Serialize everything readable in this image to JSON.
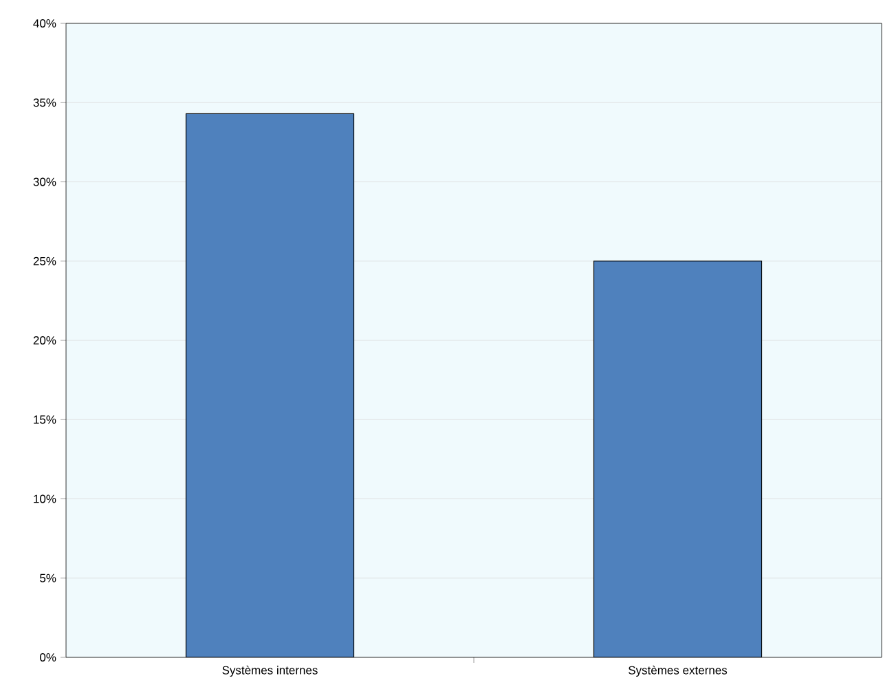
{
  "chart_data": {
    "type": "bar",
    "categories": [
      "Systèmes internes",
      "Systèmes externes"
    ],
    "values": [
      34.3,
      25.0
    ],
    "color": "#4f81bd",
    "ylim": [
      0,
      40
    ],
    "yticks": [
      {
        "value": 0,
        "label": "0%"
      },
      {
        "value": 5,
        "label": "5%"
      },
      {
        "value": 10,
        "label": "10%"
      },
      {
        "value": 15,
        "label": "15%"
      },
      {
        "value": 20,
        "label": "20%"
      },
      {
        "value": 25,
        "label": "25%"
      },
      {
        "value": 30,
        "label": "30%"
      },
      {
        "value": 35,
        "label": "35%"
      },
      {
        "value": 40,
        "label": "40%"
      }
    ],
    "grid": "y"
  }
}
